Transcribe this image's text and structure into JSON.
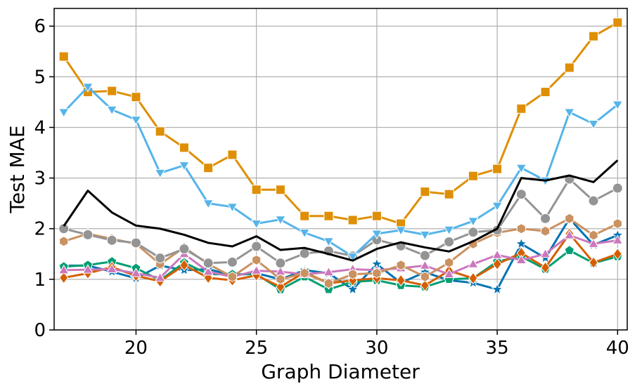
{
  "chart_data": {
    "type": "line",
    "title": "",
    "xlabel": "Graph Diameter",
    "ylabel": "Test MAE",
    "xlim": [
      16.6,
      40.4
    ],
    "ylim": [
      0,
      6.35
    ],
    "xticks": [
      20,
      25,
      30,
      35,
      40
    ],
    "yticks": [
      0,
      1,
      2,
      3,
      4,
      5,
      6
    ],
    "grid": true,
    "legend": "none",
    "x": [
      17,
      18,
      19,
      20,
      21,
      22,
      23,
      24,
      25,
      26,
      27,
      28,
      29,
      30,
      31,
      32,
      33,
      34,
      35,
      36,
      37,
      38,
      39,
      40
    ],
    "series": [
      {
        "color": "#0173b2",
        "marker": "star",
        "values": [
          1.27,
          1.27,
          1.15,
          1.02,
          1.27,
          1.18,
          1.2,
          1.08,
          1.12,
          1.0,
          1.18,
          1.12,
          0.8,
          1.3,
          0.93,
          1.14,
          0.98,
          0.93,
          0.8,
          1.7,
          1.42,
          2.2,
          1.68,
          1.87
        ]
      },
      {
        "color": "#de8f05",
        "marker": "square",
        "values": [
          5.4,
          4.7,
          4.72,
          4.6,
          3.92,
          3.6,
          3.2,
          3.46,
          2.77,
          2.77,
          2.25,
          2.25,
          2.17,
          2.25,
          2.1,
          2.73,
          2.68,
          3.04,
          3.18,
          4.37,
          4.7,
          5.18,
          5.8,
          6.07
        ]
      },
      {
        "color": "#029e73",
        "marker": "pentagon",
        "values": [
          1.25,
          1.28,
          1.35,
          1.22,
          0.98,
          1.33,
          1.1,
          1.1,
          1.1,
          0.8,
          1.05,
          0.8,
          0.95,
          0.98,
          0.88,
          0.85,
          1.0,
          1.02,
          1.35,
          1.45,
          1.2,
          1.57,
          1.32,
          1.45
        ]
      },
      {
        "color": "#d55e00",
        "marker": "diamond",
        "values": [
          1.03,
          1.12,
          1.24,
          1.07,
          0.96,
          1.28,
          1.03,
          0.98,
          1.08,
          0.85,
          1.14,
          0.92,
          0.98,
          1.02,
          0.98,
          0.88,
          1.17,
          1.02,
          1.3,
          1.52,
          1.23,
          1.9,
          1.33,
          1.5
        ]
      },
      {
        "color": "#cc78bc",
        "marker": "triangle-up",
        "values": [
          1.18,
          1.19,
          1.2,
          1.12,
          1.03,
          1.5,
          1.15,
          1.05,
          1.17,
          1.15,
          1.1,
          1.14,
          1.2,
          1.18,
          1.22,
          1.27,
          1.1,
          1.3,
          1.48,
          1.38,
          1.5,
          1.87,
          1.7,
          1.77
        ]
      },
      {
        "color": "#ca9161",
        "marker": "hexagon",
        "values": [
          1.75,
          1.9,
          1.8,
          1.7,
          1.3,
          1.63,
          1.3,
          1.05,
          1.38,
          1.0,
          1.12,
          0.92,
          1.1,
          1.12,
          1.28,
          1.05,
          1.33,
          1.7,
          1.92,
          2.0,
          1.95,
          2.2,
          1.87,
          2.1
        ]
      },
      {
        "color": "#949494",
        "marker": "circle",
        "values": [
          2.0,
          1.88,
          1.77,
          1.72,
          1.42,
          1.6,
          1.32,
          1.34,
          1.65,
          1.32,
          1.51,
          1.56,
          1.46,
          1.78,
          1.66,
          1.47,
          1.74,
          1.93,
          1.97,
          2.68,
          2.2,
          2.98,
          2.55,
          2.8
        ]
      },
      {
        "color": "#56b4e9",
        "marker": "triangle-down",
        "values": [
          4.3,
          4.8,
          4.35,
          4.15,
          3.1,
          3.25,
          2.5,
          2.43,
          2.1,
          2.18,
          1.92,
          1.75,
          1.45,
          1.9,
          1.97,
          1.88,
          1.98,
          2.15,
          2.45,
          3.2,
          2.95,
          4.3,
          4.07,
          4.45
        ]
      },
      {
        "color": "#000000",
        "marker": "none",
        "values": [
          2.05,
          2.75,
          2.32,
          2.06,
          2.0,
          1.88,
          1.72,
          1.65,
          1.85,
          1.58,
          1.62,
          1.5,
          1.37,
          1.6,
          1.73,
          1.63,
          1.55,
          1.75,
          2.0,
          3.0,
          2.95,
          3.05,
          2.92,
          3.35
        ]
      }
    ]
  }
}
